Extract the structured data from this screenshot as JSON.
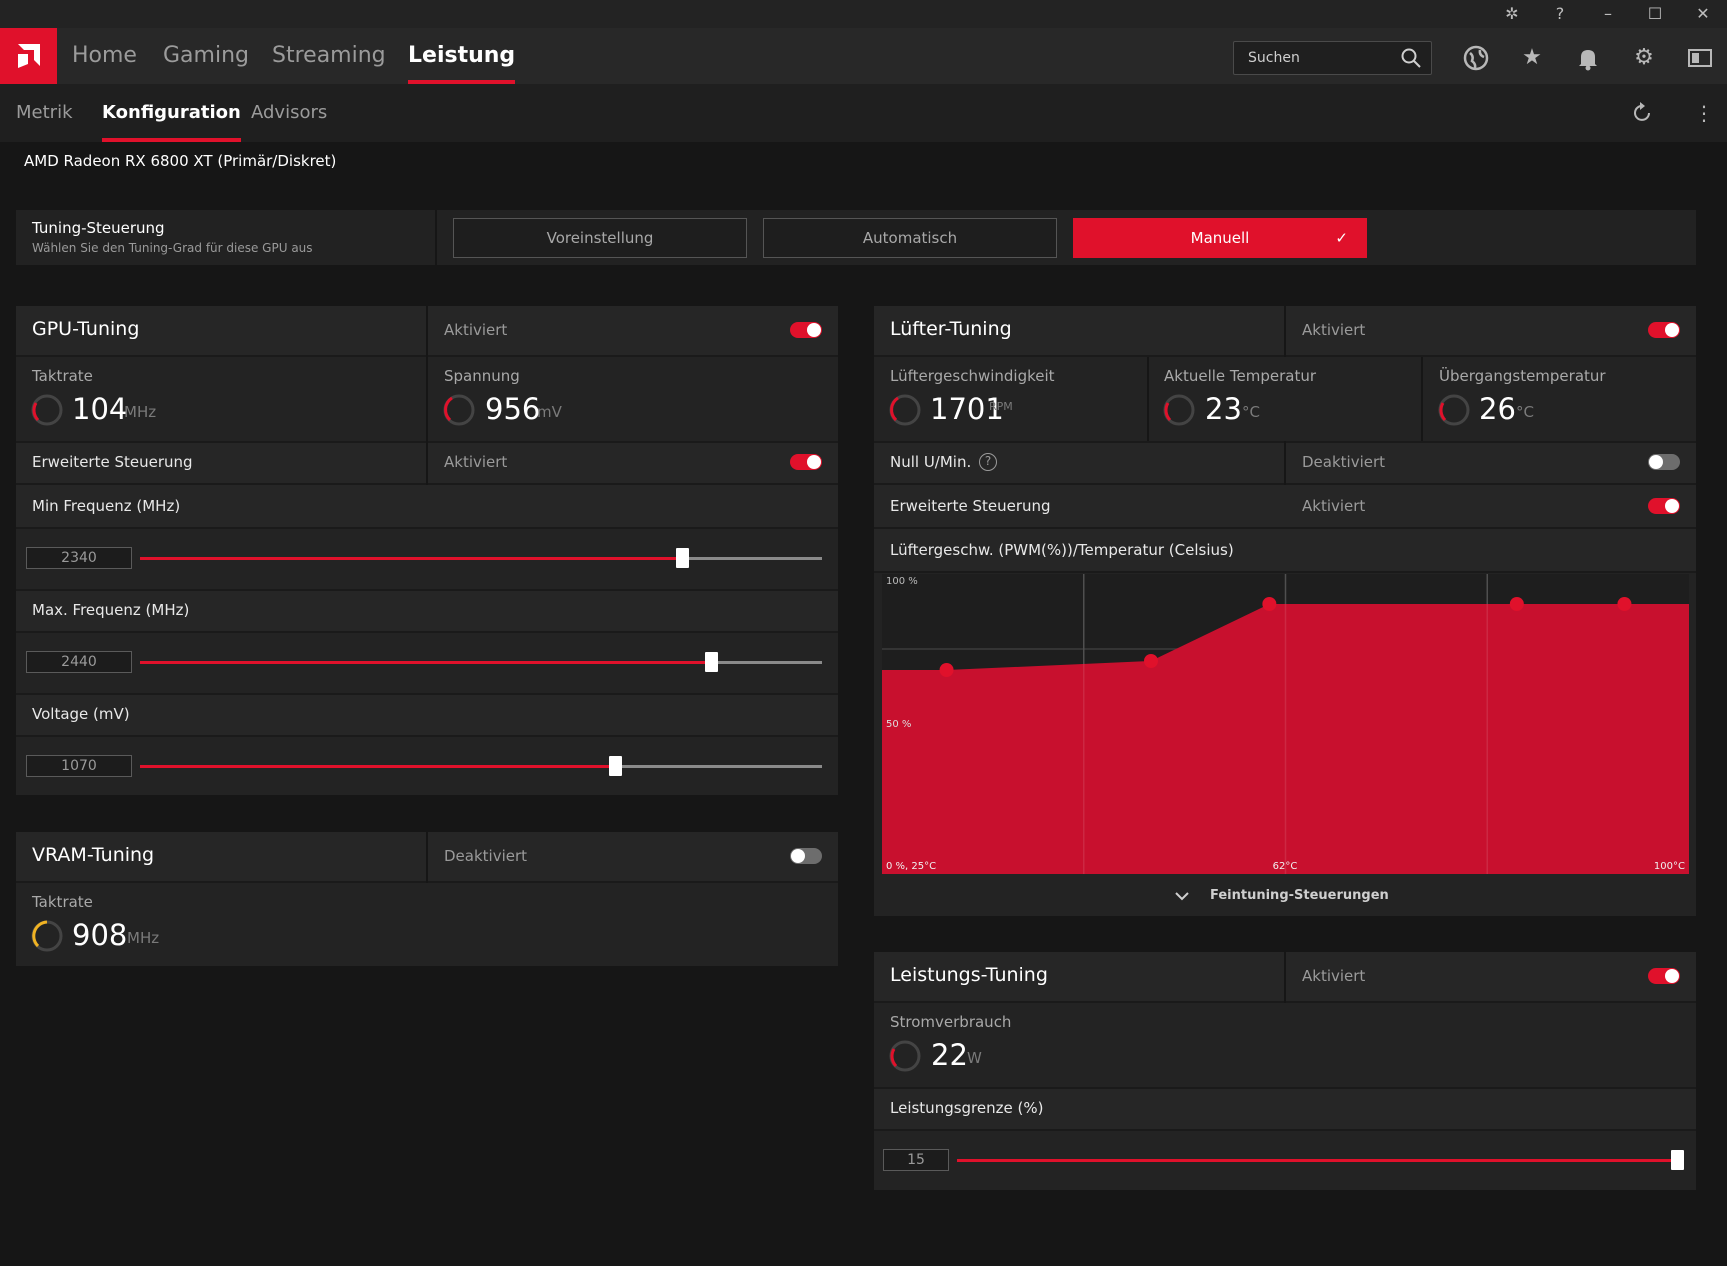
{
  "nav": {
    "tabs": [
      "Home",
      "Gaming",
      "Streaming",
      "Leistung"
    ],
    "active": "Leistung",
    "search_placeholder": "Suchen"
  },
  "subnav": {
    "tabs": [
      "Metrik",
      "Konfiguration",
      "Advisors"
    ],
    "active": "Konfiguration"
  },
  "gpu_name": "AMD Radeon RX 6800 XT (Primär/Diskret)",
  "tuning_control": {
    "title": "Tuning-Steuerung",
    "subtitle": "Wählen Sie den Tuning-Grad für diese GPU aus",
    "options": [
      "Voreinstellung",
      "Automatisch",
      "Manuell"
    ],
    "selected": "Manuell"
  },
  "gpu_tuning": {
    "title": "GPU-Tuning",
    "state": "Aktiviert",
    "clock": {
      "label": "Taktrate",
      "value": "104",
      "unit": "MHz"
    },
    "voltage": {
      "label": "Spannung",
      "value": "956",
      "unit": "mV"
    },
    "advanced": {
      "label": "Erweiterte Steuerung",
      "state": "Aktiviert"
    },
    "min_freq": {
      "label": "Min Frequenz (MHz)",
      "value": "2340",
      "fill": 0.795
    },
    "max_freq": {
      "label": "Max. Frequenz (MHz)",
      "value": "2440",
      "fill": 0.837
    },
    "voltage_slider": {
      "label": "Voltage (mV)",
      "value": "1070",
      "fill": 0.697
    }
  },
  "vram_tuning": {
    "title": "VRAM-Tuning",
    "state": "Deaktiviert",
    "clock": {
      "label": "Taktrate",
      "value": "908",
      "unit": "MHz"
    }
  },
  "fan_tuning": {
    "title": "Lüfter-Tuning",
    "state": "Aktiviert",
    "fan_speed": {
      "label": "Lüftergeschwindigkeit",
      "value": "1701",
      "unit": "RPM"
    },
    "current_temp": {
      "label": "Aktuelle Temperatur",
      "value": "23",
      "unit": "°C"
    },
    "junction_temp": {
      "label": "Übergangstemperatur",
      "value": "26",
      "unit": "°C"
    },
    "zero_rpm": {
      "label": "Null U/Min.",
      "state": "Deaktiviert"
    },
    "advanced": {
      "label": "Erweiterte Steuerung",
      "state": "Aktiviert"
    },
    "curve_title": "Lüftergeschw. (PWM(%))/Temperatur (Celsius)",
    "fine_tuning": "Feintuning-Steuerungen"
  },
  "chart_data": {
    "type": "area",
    "title": "Lüftergeschw. (PWM(%))/Temperatur (Celsius)",
    "x_tick_labels": [
      "0 %, 25°C",
      "62°C",
      "100°C"
    ],
    "y_tick_labels": [
      "100 %",
      "50 %"
    ],
    "xlim": [
      25,
      100
    ],
    "ylim": [
      0,
      100
    ],
    "x": [
      31,
      50,
      61,
      84,
      94
    ],
    "values": [
      68,
      71,
      90,
      90,
      90
    ],
    "color": "#c8102e"
  },
  "power_tuning": {
    "title": "Leistungs-Tuning",
    "state": "Aktiviert",
    "power": {
      "label": "Stromverbrauch",
      "value": "22",
      "unit": "W"
    },
    "limit": {
      "label": "Leistungsgrenze (%)",
      "value": "15",
      "fill": 1.0
    }
  },
  "colors": {
    "accent": "#e0112b",
    "vram_gauge": "#f0b323"
  }
}
